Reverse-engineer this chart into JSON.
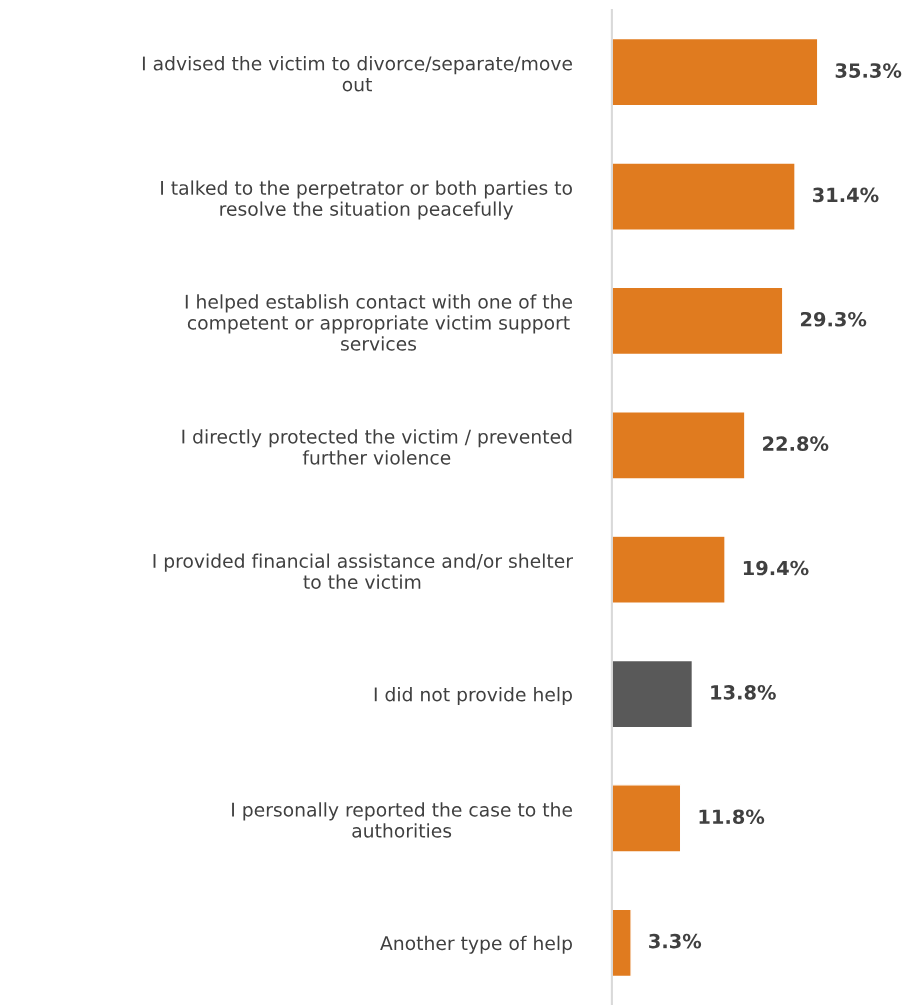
{
  "chart_data": {
    "type": "bar",
    "orientation": "horizontal",
    "categories": [
      "I advised the victim to divorce/separate/move\nout",
      "I talked to the perpetrator or both parties to\nresolve the situation peacefully",
      "I helped establish contact with one of the\ncompetent or appropriate victim support\nservices",
      "I directly protected the victim / prevented\nfurther violence",
      "I provided financial assistance and/or shelter\nto the victim",
      "I did not provide help",
      "I personally reported the case to the\nauthorities",
      "Another type of help"
    ],
    "values": [
      35.3,
      31.4,
      29.3,
      22.8,
      19.4,
      13.8,
      11.8,
      3.3
    ],
    "colors": [
      "#e07b1f",
      "#e07b1f",
      "#e07b1f",
      "#e07b1f",
      "#e07b1f",
      "#595959",
      "#e07b1f",
      "#e07b1f"
    ],
    "value_labels": [
      "35.3%",
      "31.4%",
      "29.3%",
      "22.8%",
      "19.4%",
      "13.8%",
      "11.8%",
      "3.3%"
    ],
    "tick_labels": "y",
    "grid": false,
    "legend": false
  }
}
